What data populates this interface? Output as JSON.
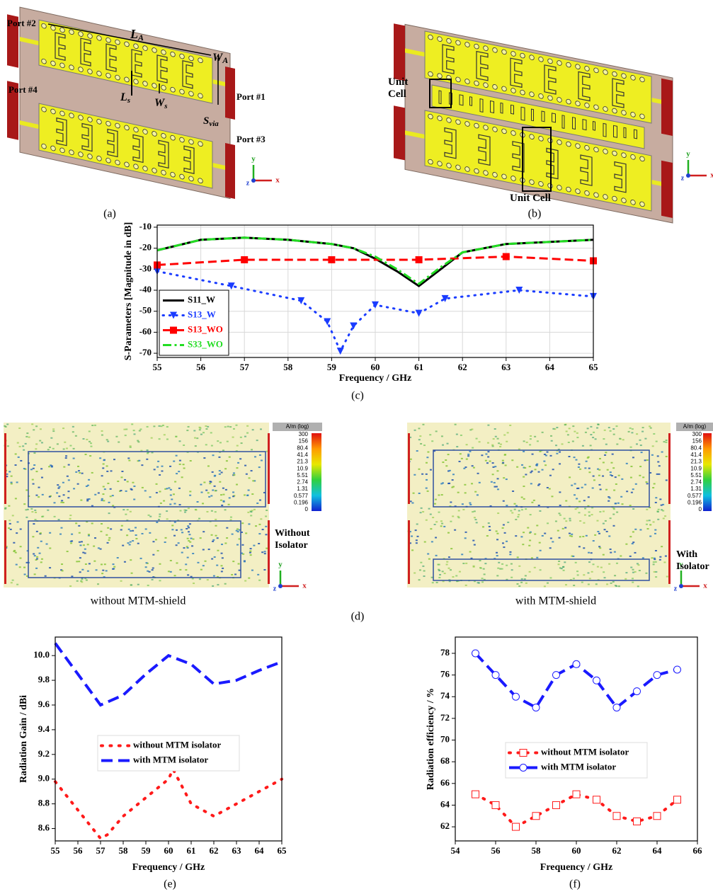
{
  "captions": [
    "(a)",
    "(b)",
    "(c)",
    "(d)",
    "(e)",
    "(f)"
  ],
  "panel_a": {
    "ports": [
      "Port #2",
      "Port #4",
      "Port #1",
      "Port #3"
    ],
    "dimensions": [
      {
        "main": "L",
        "sub": "A"
      },
      {
        "main": "W",
        "sub": "A"
      },
      {
        "main": "L",
        "sub": "s"
      },
      {
        "main": "W",
        "sub": "s"
      },
      {
        "main": "S",
        "sub": "via"
      }
    ],
    "triad": [
      "y",
      "z",
      "x"
    ]
  },
  "panel_b": {
    "labels": [
      "Unit Cell",
      "Unit Cell"
    ],
    "triad": [
      "y",
      "z",
      "x"
    ]
  },
  "panel_d": {
    "plots": [
      {
        "caption": "without MTM-shield",
        "label": "Without Isolator",
        "colorbar_unit": "A/m (log)",
        "colorbar_ticks": [
          "300",
          "156",
          "80.4",
          "41.4",
          "21.3",
          "10.9",
          "5.51",
          "2.74",
          "1.31",
          "0.577",
          "0.196",
          "0"
        ],
        "triad": [
          "y",
          "z",
          "x"
        ]
      },
      {
        "caption": "with MTM-shield",
        "label": "With Isolator",
        "colorbar_unit": "A/m (log)",
        "colorbar_ticks": [
          "300",
          "156",
          "80.4",
          "41.4",
          "21.3",
          "10.9",
          "5.51",
          "2.74",
          "1.31",
          "0.577",
          "0.196",
          "0"
        ],
        "triad": [
          "y",
          "z",
          "x"
        ]
      }
    ]
  },
  "chart_data": [
    {
      "type": "line",
      "x_label": "Frequency / GHz",
      "y_label": "S-Parameters [Magnitude in dB]",
      "xlim": [
        55,
        65
      ],
      "ylim": [
        -72,
        -9
      ],
      "xticks": [
        55,
        56,
        57,
        58,
        59,
        60,
        61,
        62,
        63,
        64,
        65
      ],
      "yticks": [
        -10,
        -20,
        -30,
        -40,
        -50,
        -60,
        -70
      ],
      "grid": true,
      "legend": "lower left",
      "legend_text_colored": true,
      "series": [
        {
          "name": "S11_W",
          "color": "#000000",
          "linestyle": "solid",
          "marker": "none",
          "x": [
            55,
            56,
            57,
            58,
            59,
            59.5,
            60,
            60.5,
            61,
            61.5,
            62,
            63,
            64,
            65
          ],
          "values": [
            -21,
            -16,
            -15,
            -16,
            -18,
            -20,
            -25,
            -31,
            -38,
            -30,
            -22,
            -18,
            -17,
            -16
          ]
        },
        {
          "name": "S13_W",
          "color": "#1a3cff",
          "linestyle": "dotted",
          "marker": "triangle-down",
          "x": [
            55,
            56.7,
            58.3,
            58.9,
            59.2,
            59.5,
            60,
            61,
            61.6,
            63.3,
            65
          ],
          "values": [
            -31,
            -38,
            -45,
            -55,
            -69,
            -57,
            -47,
            -51,
            -44,
            -40,
            -43
          ]
        },
        {
          "name": "S13_WO",
          "color": "#ff0000",
          "linestyle": "dashed",
          "marker": "square",
          "x": [
            55,
            57,
            59,
            61,
            63,
            65
          ],
          "values": [
            -28,
            -25.5,
            -25.5,
            -25.5,
            -24,
            -26
          ]
        },
        {
          "name": "S33_WO",
          "color": "#22dd22",
          "linestyle": "dashdot",
          "marker": "none",
          "x": [
            55,
            56,
            57,
            58,
            59,
            59.5,
            60,
            60.5,
            61,
            61.5,
            62,
            63,
            64,
            65
          ],
          "values": [
            -21,
            -16,
            -15,
            -16,
            -18,
            -20,
            -24,
            -30,
            -37,
            -29,
            -22,
            -18,
            -17,
            -16
          ]
        }
      ]
    },
    {
      "type": "line",
      "x_label": "Frequency / GHz",
      "y_label": "Radiation Gain / dBi",
      "xlim": [
        55,
        65
      ],
      "ylim": [
        8.5,
        10.15
      ],
      "xticks": [
        55,
        56,
        57,
        58,
        59,
        60,
        61,
        62,
        63,
        64,
        65
      ],
      "yticks": [
        8.6,
        8.8,
        {
          "value": 9,
          "label": "9.0"
        },
        9.2,
        9.4,
        9.6,
        9.8,
        {
          "value": 10,
          "label": "10.0"
        }
      ],
      "grid": false,
      "legend": "center",
      "legend_text_colored": false,
      "series": [
        {
          "name": "without MTM isolator",
          "color": "#ff1a1a",
          "linestyle": "dotted",
          "marker": "none",
          "x": [
            55,
            56,
            57,
            57.3,
            58,
            59,
            60,
            60.2,
            61,
            62,
            63,
            64,
            65
          ],
          "values": [
            8.98,
            8.75,
            8.52,
            8.55,
            8.7,
            8.85,
            9.0,
            9.08,
            8.8,
            8.7,
            8.8,
            8.9,
            9.0
          ]
        },
        {
          "name": "with MTM isolator",
          "color": "#1a1aff",
          "linestyle": "dashed",
          "marker": "none",
          "x": [
            55,
            56,
            57,
            58,
            59,
            60,
            61,
            62,
            63,
            64,
            65
          ],
          "values": [
            10.1,
            9.85,
            9.6,
            9.68,
            9.85,
            10.0,
            9.93,
            9.77,
            9.8,
            9.88,
            9.95
          ]
        }
      ]
    },
    {
      "type": "line",
      "x_label": "Frequency / GHz",
      "y_label": "Radiation efficiency / %",
      "xlim": [
        54,
        66
      ],
      "ylim": [
        60.7,
        79.5
      ],
      "xticks": [
        54,
        56,
        58,
        60,
        62,
        64,
        66
      ],
      "yticks": [
        62,
        64,
        66,
        68,
        70,
        72,
        74,
        76,
        78
      ],
      "grid": false,
      "legend": "center",
      "legend_text_colored": false,
      "series": [
        {
          "name": "without MTM isolator",
          "color": "#ff1a1a",
          "linestyle": "dotted",
          "marker": "open-square",
          "x": [
            55,
            56,
            57,
            58,
            59,
            60,
            61,
            62,
            63,
            64,
            65
          ],
          "values": [
            65,
            64,
            62,
            63,
            64,
            65,
            64.5,
            63,
            62.5,
            63,
            64.5
          ]
        },
        {
          "name": "with MTM isolator",
          "color": "#1a1aff",
          "linestyle": "dashed",
          "marker": "open-circle",
          "x": [
            55,
            56,
            57,
            58,
            59,
            60,
            61,
            62,
            63,
            64,
            65
          ],
          "values": [
            78,
            76,
            74,
            73,
            76,
            77,
            75.5,
            73,
            74.5,
            76,
            76.5
          ]
        }
      ]
    }
  ]
}
